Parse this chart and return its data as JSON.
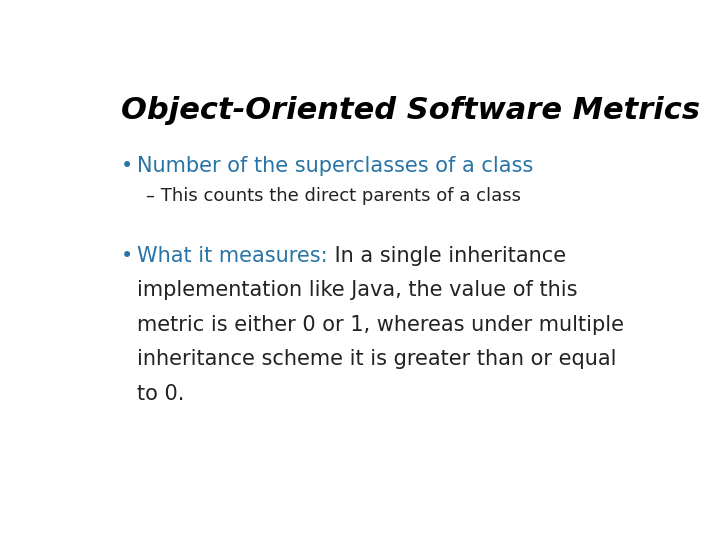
{
  "title": "Object-Oriented Software Metrics",
  "title_color": "#000000",
  "title_fontsize": 22,
  "title_style": "italic",
  "title_weight": "bold",
  "background_color": "#ffffff",
  "bullet1_text": "Number of the superclasses of a class",
  "bullet1_color": "#2874A6",
  "bullet1_fontsize": 15,
  "sub_bullet1_text": "– This counts the direct parents of a class",
  "sub_bullet1_color": "#222222",
  "sub_bullet1_fontsize": 13,
  "bullet2_prefix": "What it measures:",
  "bullet2_prefix_color": "#2874A6",
  "bullet2_body_line1": " In a single inheritance",
  "bullet2_body_lines": [
    "implementation like Java, the value of this",
    "metric is either 0 or 1, whereas under multiple",
    "inheritance scheme it is greater than or equal",
    "to 0."
  ],
  "bullet2_color": "#222222",
  "bullet2_fontsize": 15,
  "bullet_color": "#2874A6",
  "bullet_symbol": "•"
}
